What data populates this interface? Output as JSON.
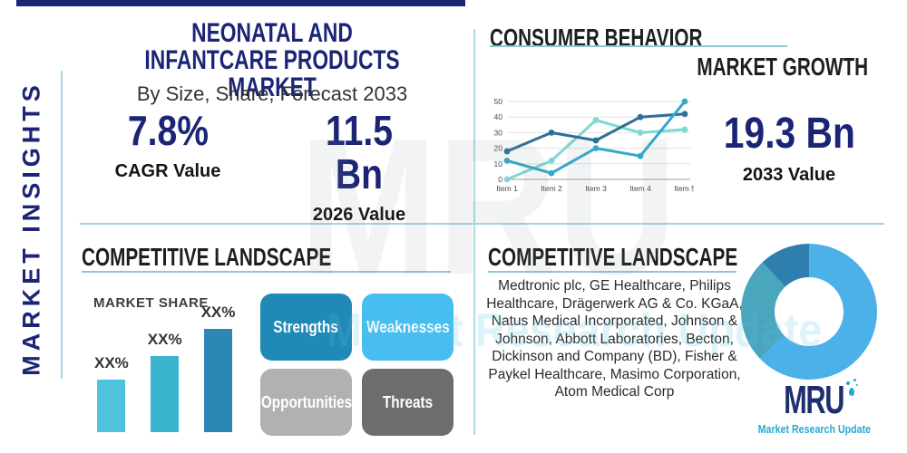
{
  "page": {
    "title_line1": "NEONATAL AND INFANTCARE PRODUCTS",
    "title_line2": "MARKET",
    "subtitle": "By Size, Share, Forecast 2033",
    "sidebar_label": "MARKET INSIGHTS"
  },
  "stats": {
    "cagr_value": "7.8%",
    "cagr_label": "CAGR Value",
    "value_2026": "11.5 Bn",
    "label_2026": "2026 Value",
    "value_2033": "19.3 Bn",
    "label_2033": "2033 Value"
  },
  "headings": {
    "consumer_behavior": "CONSUMER BEHAVIOR",
    "market_growth": "MARKET GROWTH",
    "competitive_landscape_left": "COMPETITIVE LANDSCAPE",
    "market_share": "MARKET SHARE",
    "competitive_landscape_right": "COMPETITIVE LANDSCAPE"
  },
  "chart_data": [
    {
      "type": "line",
      "title": "Consumer behavior trend chart",
      "x": [
        "Item 1",
        "Item 2",
        "Item 3",
        "Item 4",
        "Item 5"
      ],
      "series": [
        {
          "name": "series-dark-blue",
          "color": "#2e6e99",
          "values": [
            18,
            30,
            25,
            40,
            42
          ]
        },
        {
          "name": "series-medium-teal",
          "color": "#35a9c9",
          "values": [
            12,
            4,
            20,
            15,
            50
          ]
        },
        {
          "name": "series-light-cyan",
          "color": "#7ed8d3",
          "values": [
            0,
            12,
            38,
            30,
            32
          ]
        }
      ],
      "ylim": [
        0,
        50
      ],
      "yticks": [
        0,
        10,
        20,
        30,
        40,
        50
      ],
      "grid": true,
      "legend": false
    },
    {
      "type": "bar",
      "title": "Market share",
      "categories": [
        "XX%",
        "XX%",
        "XX%"
      ],
      "values": [
        25,
        36,
        49
      ],
      "colors": [
        "#4fc3dc",
        "#3ab4cf",
        "#2d87b4"
      ],
      "ylim": [
        0,
        60
      ]
    },
    {
      "type": "pie",
      "title": "Competitive landscape donut",
      "donut": true,
      "slices": [
        {
          "name": "light-blue",
          "value": 63,
          "color": "#4cb1e9"
        },
        {
          "name": "teal",
          "value": 25,
          "color": "#4aa6bd"
        },
        {
          "name": "steel-blue",
          "value": 12,
          "color": "#2e7fae"
        }
      ]
    }
  ],
  "swot": [
    {
      "label": "Strengths",
      "color": "#2089b5"
    },
    {
      "label": "Weaknesses",
      "color": "#47bdf0"
    },
    {
      "label": "Opportunities",
      "color": "#b1b1b1"
    },
    {
      "label": "Threats",
      "color": "#6d6d6d"
    }
  ],
  "companies_text": "Medtronic plc, GE Healthcare, Philips Healthcare, Drägerwerk AG & Co. KGaA, Natus Medical Incorporated, Johnson & Johnson, Abbott Laboratories, Becton, Dickinson and Company (BD), Fisher & Paykel Healthcare, Masimo Corporation, Atom Medical Corp",
  "logo": {
    "text": "MRU",
    "tagline": "Market Research Update"
  },
  "watermark": {
    "line1": "MRU",
    "line2": "Market Research Update"
  },
  "colors": {
    "navy": "#1c2575",
    "heading_text": "#1f1f1f",
    "underline": "#8fc7d8",
    "divider": "#a5d3e0",
    "logo_navy": "#1e2f6d",
    "logo_teal": "#29a8d4"
  }
}
